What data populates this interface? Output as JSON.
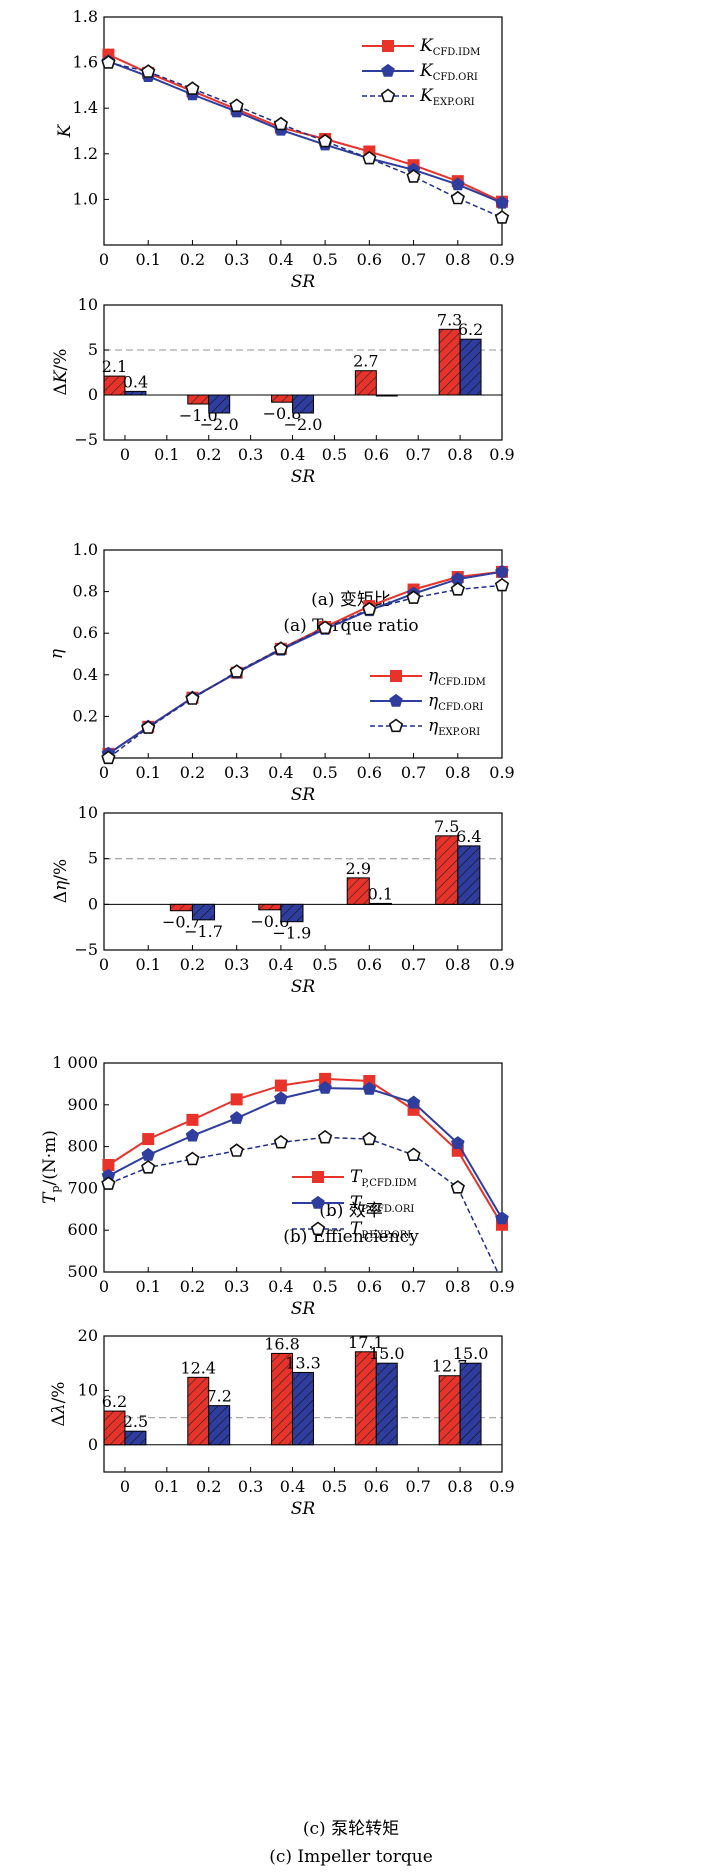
{
  "colors": {
    "red": "#e8332b",
    "blue": "#2e3d9e",
    "exp": "#1f2e8a",
    "dash_ref": "#aaaaaa"
  },
  "captions": {
    "a_cn": "(a) 变矩比",
    "a_en": "(a) Torque ratio",
    "b_cn": "(b) 效率",
    "b_en": "(b) Effienciency",
    "c_cn": "(c) 泵轮转矩",
    "c_en": "(c) Impeller torque"
  },
  "chart_data": [
    {
      "id": "a_line",
      "type": "line",
      "ylabel": "K",
      "xlabel": "SR",
      "xlim": [
        0,
        0.9
      ],
      "ylim": [
        0.8,
        1.8
      ],
      "xticks": [
        0,
        0.1,
        0.2,
        0.3,
        0.4,
        0.5,
        0.6,
        0.7,
        0.8,
        0.9
      ],
      "xtick_labels": [
        "0",
        "0.1",
        "0.2",
        "0.3",
        "0.4",
        "0.5",
        "0.6",
        "0.7",
        "0.8",
        "0.9"
      ],
      "yticks": [
        0.8,
        1.0,
        1.2,
        1.4,
        1.6,
        1.8
      ],
      "ytick_labels": [
        "",
        "1.0",
        "1.2",
        "1.4",
        "1.6",
        "1.8"
      ],
      "legend_position": "top-right",
      "series": [
        {
          "name": "K",
          "sub": "CFD.IDM",
          "color": "#e8332b",
          "marker": "square",
          "style": "solid",
          "x": [
            0.01,
            0.1,
            0.2,
            0.3,
            0.4,
            0.5,
            0.6,
            0.7,
            0.8,
            0.9
          ],
          "y": [
            1.635,
            1.555,
            1.475,
            1.395,
            1.315,
            1.265,
            1.21,
            1.15,
            1.08,
            0.99
          ]
        },
        {
          "name": "K",
          "sub": "CFD.ORI",
          "color": "#2e3d9e",
          "marker": "pentagon",
          "style": "solid",
          "x": [
            0.01,
            0.1,
            0.2,
            0.3,
            0.4,
            0.5,
            0.6,
            0.7,
            0.8,
            0.9
          ],
          "y": [
            1.605,
            1.54,
            1.46,
            1.385,
            1.305,
            1.24,
            1.18,
            1.13,
            1.065,
            0.985
          ]
        },
        {
          "name": "K",
          "sub": "EXP.ORI",
          "color": "#1f2e8a",
          "marker": "pentagon-open",
          "style": "dashed",
          "x": [
            0.01,
            0.1,
            0.2,
            0.3,
            0.4,
            0.5,
            0.6,
            0.7,
            0.8,
            0.9
          ],
          "y": [
            1.6,
            1.56,
            1.485,
            1.41,
            1.33,
            1.255,
            1.18,
            1.1,
            1.005,
            0.92
          ]
        }
      ]
    },
    {
      "id": "a_bar",
      "type": "bar",
      "ylabel": "ΔK/%",
      "xlabel": "SR",
      "xlim": [
        -0.05,
        0.9
      ],
      "ylim": [
        -5,
        10
      ],
      "xticks": [
        0,
        0.1,
        0.2,
        0.3,
        0.4,
        0.5,
        0.6,
        0.7,
        0.8,
        0.9
      ],
      "xtick_labels": [
        "0",
        "0.1",
        "0.2",
        "0.3",
        "0.4",
        "0.5",
        "0.6",
        "0.7",
        "0.8",
        "0.9"
      ],
      "yticks": [
        -5,
        0,
        5,
        10
      ],
      "ytick_labels": [
        "−5",
        "0",
        "5",
        "10"
      ],
      "reference_line": 5,
      "categories": [
        0,
        0.2,
        0.4,
        0.6,
        0.8
      ],
      "series": [
        {
          "name": "CFD.IDM",
          "color": "#e8332b",
          "values": [
            2.1,
            -1.0,
            -0.8,
            2.7,
            7.3
          ]
        },
        {
          "name": "CFD.ORI",
          "color": "#2e3d9e",
          "values": [
            0.4,
            -2.0,
            -2.0,
            0.0,
            6.2
          ]
        }
      ],
      "value_labels": [
        [
          "2.1",
          "−1.0",
          "−0.8",
          "2.7",
          "7.3"
        ],
        [
          "0.4",
          "−2.0",
          "−2.0",
          "",
          "6.2"
        ]
      ]
    },
    {
      "id": "b_line",
      "type": "line",
      "ylabel": "η",
      "xlabel": "SR",
      "xlim": [
        0,
        0.9
      ],
      "ylim": [
        0,
        1.0
      ],
      "xticks": [
        0,
        0.1,
        0.2,
        0.3,
        0.4,
        0.5,
        0.6,
        0.7,
        0.8,
        0.9
      ],
      "xtick_labels": [
        "0",
        "0.1",
        "0.2",
        "0.3",
        "0.4",
        "0.5",
        "0.6",
        "0.7",
        "0.8",
        "0.9"
      ],
      "yticks": [
        0,
        0.2,
        0.4,
        0.6,
        0.8,
        1.0
      ],
      "ytick_labels": [
        "",
        "0.2",
        "0.4",
        "0.6",
        "0.8",
        "1.0"
      ],
      "legend_position": "bottom-right",
      "series": [
        {
          "name": "η",
          "sub": "CFD.IDM",
          "color": "#e8332b",
          "marker": "square",
          "style": "solid",
          "x": [
            0.01,
            0.1,
            0.2,
            0.3,
            0.4,
            0.5,
            0.6,
            0.7,
            0.8,
            0.9
          ],
          "y": [
            0.02,
            0.15,
            0.29,
            0.41,
            0.525,
            0.63,
            0.73,
            0.81,
            0.87,
            0.895
          ]
        },
        {
          "name": "η",
          "sub": "CFD.ORI",
          "color": "#2e3d9e",
          "marker": "pentagon",
          "style": "solid",
          "x": [
            0.01,
            0.1,
            0.2,
            0.3,
            0.4,
            0.5,
            0.6,
            0.7,
            0.8,
            0.9
          ],
          "y": [
            0.02,
            0.15,
            0.29,
            0.41,
            0.52,
            0.62,
            0.71,
            0.79,
            0.86,
            0.895
          ]
        },
        {
          "name": "η",
          "sub": "EXP.ORI",
          "color": "#1f2e8a",
          "marker": "pentagon-open",
          "style": "dashed",
          "x": [
            0.01,
            0.1,
            0.2,
            0.3,
            0.4,
            0.5,
            0.6,
            0.7,
            0.8,
            0.9
          ],
          "y": [
            0.0,
            0.145,
            0.285,
            0.415,
            0.525,
            0.625,
            0.715,
            0.77,
            0.81,
            0.83
          ]
        }
      ]
    },
    {
      "id": "b_bar",
      "type": "bar",
      "ylabel": "Δη/%",
      "xlabel": "SR",
      "xlim": [
        0,
        0.9
      ],
      "ylim": [
        -5,
        10
      ],
      "xticks": [
        0,
        0.1,
        0.2,
        0.3,
        0.4,
        0.5,
        0.6,
        0.7,
        0.8,
        0.9
      ],
      "xtick_labels": [
        "0",
        "0.1",
        "0.2",
        "0.3",
        "0.4",
        "0.5",
        "0.6",
        "0.7",
        "0.8",
        "0.9"
      ],
      "yticks": [
        -5,
        0,
        5,
        10
      ],
      "ytick_labels": [
        "−5",
        "0",
        "5",
        "10"
      ],
      "reference_line": 5,
      "categories": [
        0.2,
        0.4,
        0.6,
        0.8
      ],
      "series": [
        {
          "name": "CFD.IDM",
          "color": "#e8332b",
          "values": [
            -0.7,
            -0.6,
            2.9,
            7.5
          ]
        },
        {
          "name": "CFD.ORI",
          "color": "#2e3d9e",
          "values": [
            -1.7,
            -1.9,
            0.1,
            6.4
          ]
        }
      ],
      "value_labels": [
        [
          "−0.7",
          "−0.6",
          "2.9",
          "7.5"
        ],
        [
          "−1.7",
          "−1.9",
          "0.1",
          "6.4"
        ]
      ]
    },
    {
      "id": "c_line",
      "type": "line",
      "ylabel": "Tp/(N·m)",
      "xlabel": "SR",
      "xlim": [
        0,
        0.9
      ],
      "ylim": [
        500,
        1000
      ],
      "xticks": [
        0,
        0.1,
        0.2,
        0.3,
        0.4,
        0.5,
        0.6,
        0.7,
        0.8,
        0.9
      ],
      "xtick_labels": [
        "0",
        "0.1",
        "0.2",
        "0.3",
        "0.4",
        "0.5",
        "0.6",
        "0.7",
        "0.8",
        "0.9"
      ],
      "yticks": [
        500,
        600,
        700,
        800,
        900,
        1000
      ],
      "ytick_labels": [
        "500",
        "600",
        "700",
        "800",
        "900",
        "1 000"
      ],
      "legend_position": "bottom-center",
      "series": [
        {
          "name": "T",
          "sub": "P,CFD.IDM",
          "color": "#e8332b",
          "marker": "square",
          "style": "solid",
          "x": [
            0.01,
            0.1,
            0.2,
            0.3,
            0.4,
            0.5,
            0.6,
            0.7,
            0.8,
            0.9
          ],
          "y": [
            756,
            818,
            864,
            913,
            946,
            962,
            957,
            888,
            790,
            613
          ]
        },
        {
          "name": "T",
          "sub": "P,CFD.ORI",
          "color": "#2e3d9e",
          "marker": "pentagon",
          "style": "solid",
          "x": [
            0.01,
            0.1,
            0.2,
            0.3,
            0.4,
            0.5,
            0.6,
            0.7,
            0.8,
            0.9
          ],
          "y": [
            730,
            780,
            826,
            868,
            915,
            940,
            938,
            905,
            808,
            628
          ]
        },
        {
          "name": "T",
          "sub": "P,EXP.ORI",
          "color": "#1f2e8a",
          "marker": "pentagon-open",
          "style": "dashed",
          "x": [
            0.01,
            0.1,
            0.2,
            0.3,
            0.4,
            0.5,
            0.6,
            0.7,
            0.8,
            0.89
          ],
          "y": [
            711,
            750,
            770,
            790,
            810,
            822,
            818,
            780,
            702,
            500
          ],
          "marker_count": 9
        }
      ]
    },
    {
      "id": "c_bar",
      "type": "bar",
      "ylabel": "Δλ/%",
      "xlabel": "SR",
      "xlim": [
        -0.05,
        0.9
      ],
      "ylim": [
        -5,
        20
      ],
      "xticks": [
        0,
        0.1,
        0.2,
        0.3,
        0.4,
        0.5,
        0.6,
        0.7,
        0.8,
        0.9
      ],
      "xtick_labels": [
        "0",
        "0.1",
        "0.2",
        "0.3",
        "0.4",
        "0.5",
        "0.6",
        "0.7",
        "0.8",
        "0.9"
      ],
      "yticks": [
        0,
        10,
        20
      ],
      "ytick_labels": [
        "0",
        "10",
        "20"
      ],
      "reference_line": 5,
      "categories": [
        0,
        0.2,
        0.4,
        0.6,
        0.8
      ],
      "series": [
        {
          "name": "CFD.IDM",
          "color": "#e8332b",
          "values": [
            6.2,
            12.4,
            16.8,
            17.1,
            12.7
          ]
        },
        {
          "name": "CFD.ORI",
          "color": "#2e3d9e",
          "values": [
            2.5,
            7.2,
            13.3,
            15.0,
            15.0
          ]
        }
      ],
      "value_labels": [
        [
          "6.2",
          "12.4",
          "16.8",
          "17.1",
          "12.7"
        ],
        [
          "2.5",
          "7.2",
          "13.3",
          "15.0",
          "15.0"
        ]
      ]
    }
  ]
}
